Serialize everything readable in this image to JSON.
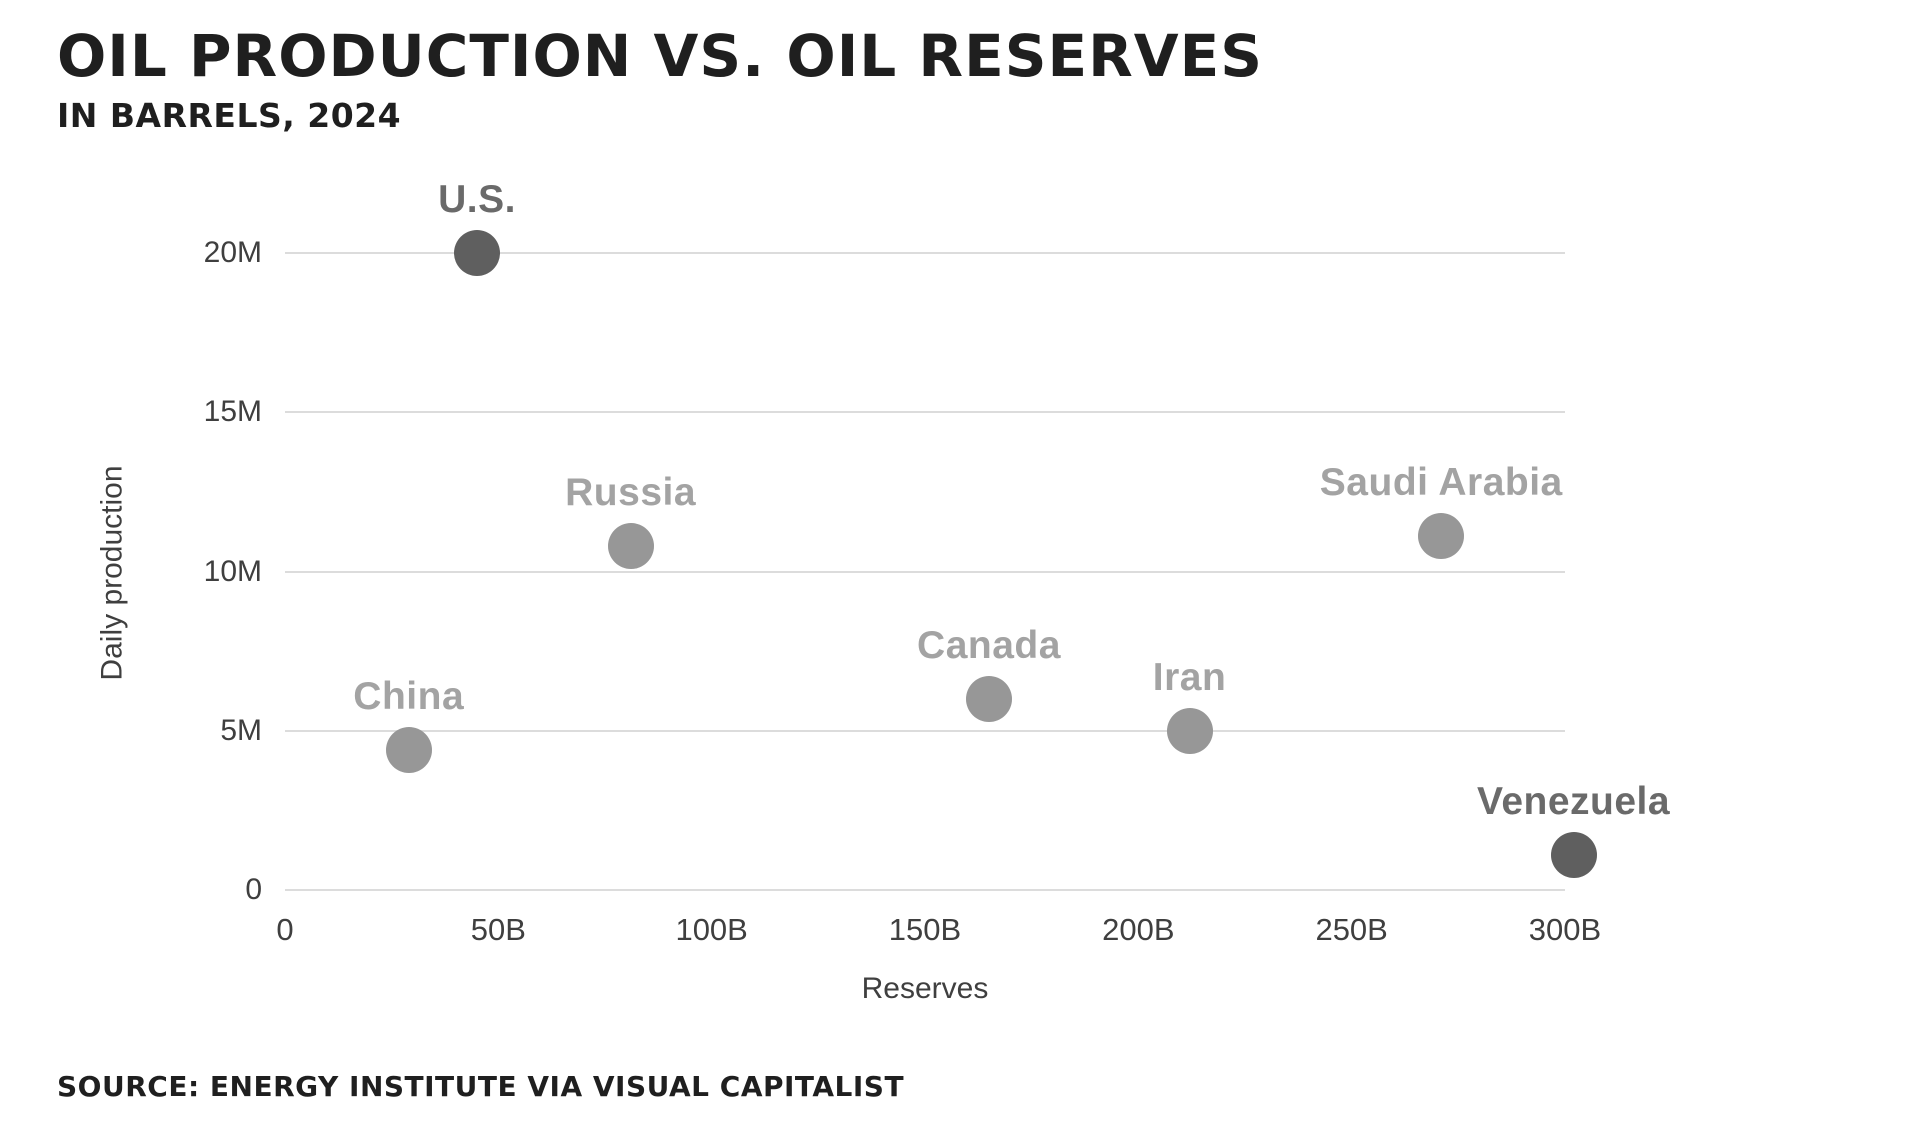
{
  "header": {
    "title": "OIL PRODUCTION VS. OIL RESERVES",
    "subtitle": "IN BARRELS, 2024"
  },
  "footer": {
    "source": "SOURCE: ENERGY INSTITUTE VIA VISUAL CAPITALIST"
  },
  "chart_data": {
    "type": "scatter",
    "title": "OIL PRODUCTION VS. OIL RESERVES",
    "subtitle": "IN BARRELS, 2024",
    "xlabel": "Reserves",
    "ylabel": "Daily production",
    "x_unit": "billion barrels",
    "y_unit": "million barrels per day",
    "xlim_billions": [
      0,
      300
    ],
    "ylim_millions": [
      0,
      20
    ],
    "grid": "horizontal-only",
    "legend": "none",
    "x_ticks": [
      {
        "v": 0,
        "label": "0"
      },
      {
        "v": 50,
        "label": "50B"
      },
      {
        "v": 100,
        "label": "100B"
      },
      {
        "v": 150,
        "label": "150B"
      },
      {
        "v": 200,
        "label": "200B"
      },
      {
        "v": 250,
        "label": "250B"
      },
      {
        "v": 300,
        "label": "300B"
      }
    ],
    "y_ticks": [
      {
        "v": 0,
        "label": "0"
      },
      {
        "v": 5,
        "label": "5M"
      },
      {
        "v": 10,
        "label": "10M"
      },
      {
        "v": 15,
        "label": "15M"
      },
      {
        "v": 20,
        "label": "20M"
      }
    ],
    "points": [
      {
        "name": "U.S.",
        "reserves_billion": 45,
        "production_million": 20.0,
        "emphasis": true
      },
      {
        "name": "Russia",
        "reserves_billion": 81,
        "production_million": 10.8,
        "emphasis": false
      },
      {
        "name": "China",
        "reserves_billion": 29,
        "production_million": 4.4,
        "emphasis": false
      },
      {
        "name": "Canada",
        "reserves_billion": 165,
        "production_million": 6.0,
        "emphasis": false
      },
      {
        "name": "Iran",
        "reserves_billion": 212,
        "production_million": 5.0,
        "emphasis": false
      },
      {
        "name": "Saudi Arabia",
        "reserves_billion": 271,
        "production_million": 11.1,
        "emphasis": false
      },
      {
        "name": "Venezuela",
        "reserves_billion": 302,
        "production_million": 1.1,
        "emphasis": true
      }
    ],
    "colors": {
      "dot_default": "#979797",
      "dot_emphasis": "#5f5f5f",
      "label_default": "#a3a3a3",
      "label_emphasis": "#6a6a6a",
      "gridline": "#dcdcdc",
      "axis_text": "#3f3f3f",
      "heading_text": "#1f1f1f"
    }
  }
}
